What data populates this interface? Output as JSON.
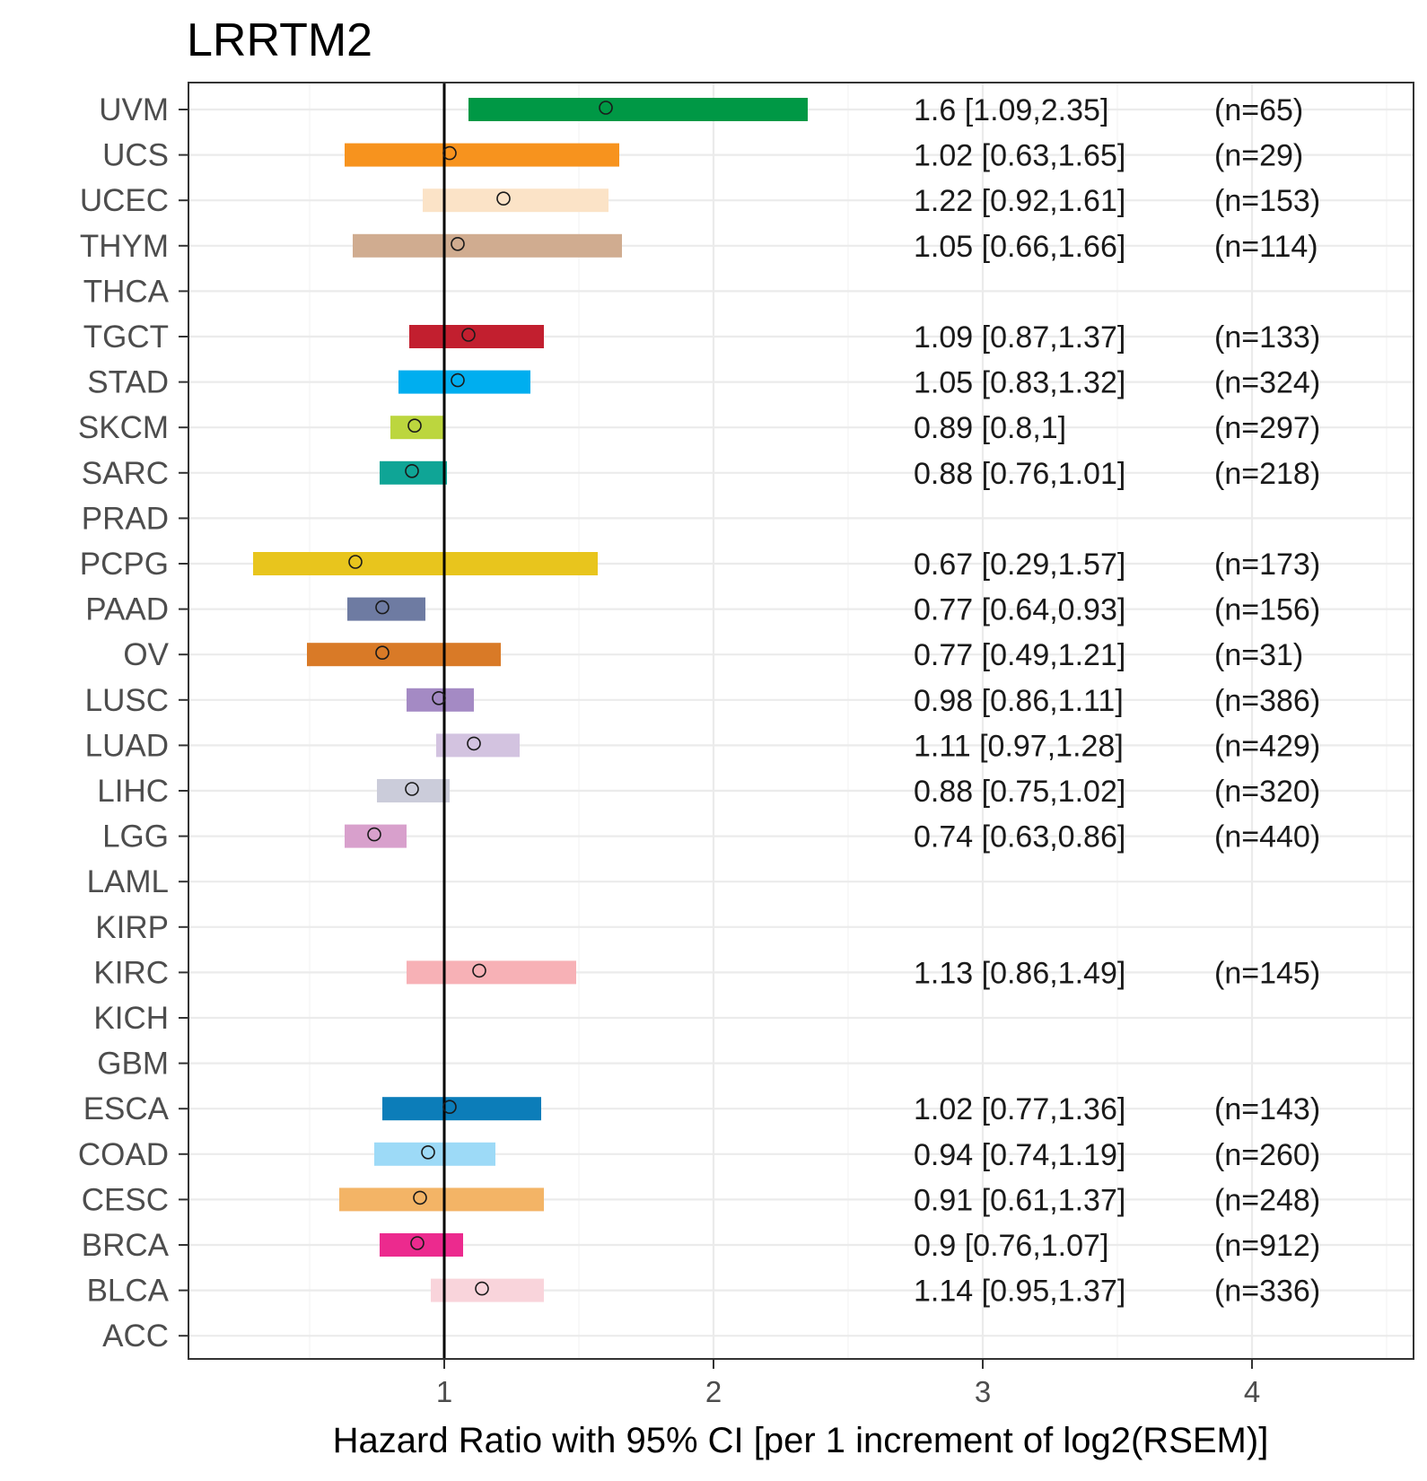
{
  "chart_data": {
    "type": "forest",
    "title": "LRRTM2",
    "xlabel": "Hazard Ratio with 95% CI [per 1 increment of log2(RSEM)]",
    "ylabel": "",
    "xlim": [
      0.05,
      4.6
    ],
    "xticks": [
      1,
      2,
      3,
      4
    ],
    "reference_line": 1,
    "grid": true,
    "rows": [
      {
        "label": "UVM",
        "hr": 1.6,
        "lo": 1.09,
        "hi": 2.35,
        "annotation": "1.6 [1.09,2.35]",
        "n": "(n=65)",
        "color": "#009845"
      },
      {
        "label": "UCS",
        "hr": 1.02,
        "lo": 0.63,
        "hi": 1.65,
        "annotation": "1.02 [0.63,1.65]",
        "n": "(n=29)",
        "color": "#F7931E"
      },
      {
        "label": "UCEC",
        "hr": 1.22,
        "lo": 0.92,
        "hi": 1.61,
        "annotation": "1.22 [0.92,1.61]",
        "n": "(n=153)",
        "color": "#FBE3C7"
      },
      {
        "label": "THYM",
        "hr": 1.05,
        "lo": 0.66,
        "hi": 1.66,
        "annotation": "1.05 [0.66,1.66]",
        "n": "(n=114)",
        "color": "#D0AC90"
      },
      {
        "label": "THCA",
        "hr": null,
        "lo": null,
        "hi": null,
        "annotation": "",
        "n": "",
        "color": ""
      },
      {
        "label": "TGCT",
        "hr": 1.09,
        "lo": 0.87,
        "hi": 1.37,
        "annotation": "1.09 [0.87,1.37]",
        "n": "(n=133)",
        "color": "#C21F2F"
      },
      {
        "label": "STAD",
        "hr": 1.05,
        "lo": 0.83,
        "hi": 1.32,
        "annotation": "1.05 [0.83,1.32]",
        "n": "(n=324)",
        "color": "#00AEEF"
      },
      {
        "label": "SKCM",
        "hr": 0.89,
        "lo": 0.8,
        "hi": 1.0,
        "annotation": "0.89 [0.8,1]",
        "n": "(n=297)",
        "color": "#BCD63E"
      },
      {
        "label": "SARC",
        "hr": 0.88,
        "lo": 0.76,
        "hi": 1.01,
        "annotation": "0.88 [0.76,1.01]",
        "n": "(n=218)",
        "color": "#0FA596"
      },
      {
        "label": "PRAD",
        "hr": null,
        "lo": null,
        "hi": null,
        "annotation": "",
        "n": "",
        "color": ""
      },
      {
        "label": "PCPG",
        "hr": 0.67,
        "lo": 0.29,
        "hi": 1.57,
        "annotation": "0.67 [0.29,1.57]",
        "n": "(n=173)",
        "color": "#E8C51D"
      },
      {
        "label": "PAAD",
        "hr": 0.77,
        "lo": 0.64,
        "hi": 0.93,
        "annotation": "0.77 [0.64,0.93]",
        "n": "(n=156)",
        "color": "#6E7BA2"
      },
      {
        "label": "OV",
        "hr": 0.77,
        "lo": 0.49,
        "hi": 1.21,
        "annotation": "0.77 [0.49,1.21]",
        "n": "(n=31)",
        "color": "#D97A27"
      },
      {
        "label": "LUSC",
        "hr": 0.98,
        "lo": 0.86,
        "hi": 1.11,
        "annotation": "0.98 [0.86,1.11]",
        "n": "(n=386)",
        "color": "#A48AC4"
      },
      {
        "label": "LUAD",
        "hr": 1.11,
        "lo": 0.97,
        "hi": 1.28,
        "annotation": "1.11 [0.97,1.28]",
        "n": "(n=429)",
        "color": "#D3C3E0"
      },
      {
        "label": "LIHC",
        "hr": 0.88,
        "lo": 0.75,
        "hi": 1.02,
        "annotation": "0.88 [0.75,1.02]",
        "n": "(n=320)",
        "color": "#CBCCDA"
      },
      {
        "label": "LGG",
        "hr": 0.74,
        "lo": 0.63,
        "hi": 0.86,
        "annotation": "0.74 [0.63,0.86]",
        "n": "(n=440)",
        "color": "#D8A0CC"
      },
      {
        "label": "LAML",
        "hr": null,
        "lo": null,
        "hi": null,
        "annotation": "",
        "n": "",
        "color": ""
      },
      {
        "label": "KIRP",
        "hr": null,
        "lo": null,
        "hi": null,
        "annotation": "",
        "n": "",
        "color": ""
      },
      {
        "label": "KIRC",
        "hr": 1.13,
        "lo": 0.86,
        "hi": 1.49,
        "annotation": "1.13 [0.86,1.49]",
        "n": "(n=145)",
        "color": "#F7B1B6"
      },
      {
        "label": "KICH",
        "hr": null,
        "lo": null,
        "hi": null,
        "annotation": "",
        "n": "",
        "color": ""
      },
      {
        "label": "GBM",
        "hr": null,
        "lo": null,
        "hi": null,
        "annotation": "",
        "n": "",
        "color": ""
      },
      {
        "label": "ESCA",
        "hr": 1.02,
        "lo": 0.77,
        "hi": 1.36,
        "annotation": "1.02 [0.77,1.36]",
        "n": "(n=143)",
        "color": "#0C7DB9"
      },
      {
        "label": "COAD",
        "hr": 0.94,
        "lo": 0.74,
        "hi": 1.19,
        "annotation": "0.94 [0.74,1.19]",
        "n": "(n=260)",
        "color": "#9DDAF7"
      },
      {
        "label": "CESC",
        "hr": 0.91,
        "lo": 0.61,
        "hi": 1.37,
        "annotation": "0.91 [0.61,1.37]",
        "n": "(n=248)",
        "color": "#F3B466"
      },
      {
        "label": "BRCA",
        "hr": 0.9,
        "lo": 0.76,
        "hi": 1.07,
        "annotation": "0.9 [0.76,1.07]",
        "n": "(n=912)",
        "color": "#EC2A8E"
      },
      {
        "label": "BLCA",
        "hr": 1.14,
        "lo": 0.95,
        "hi": 1.37,
        "annotation": "1.14 [0.95,1.37]",
        "n": "(n=336)",
        "color": "#F9D4DB"
      },
      {
        "label": "ACC",
        "hr": null,
        "lo": null,
        "hi": null,
        "annotation": "",
        "n": "",
        "color": ""
      }
    ]
  }
}
